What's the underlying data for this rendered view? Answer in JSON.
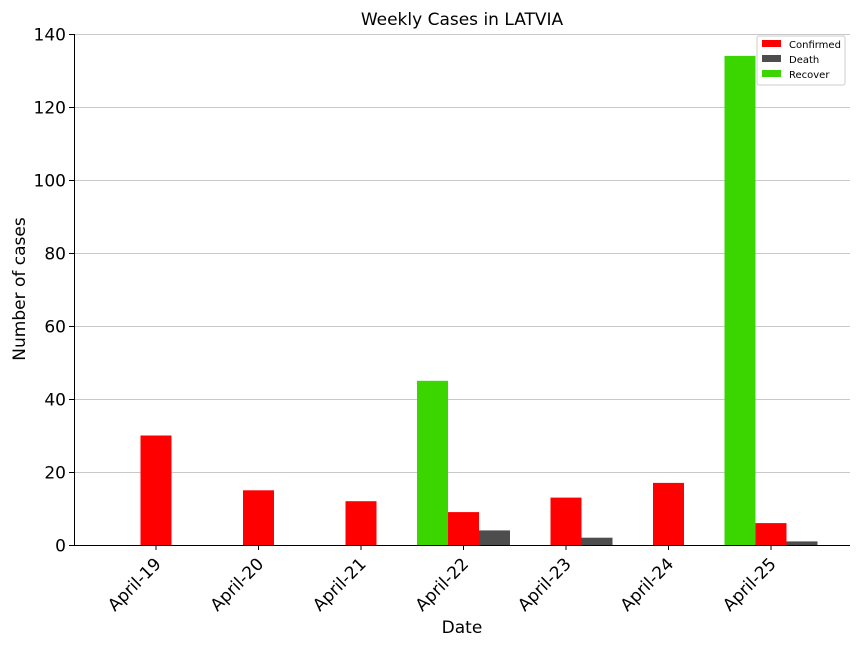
{
  "chart_data": {
    "type": "bar",
    "title": "Weekly Cases in LATVIA",
    "xlabel": "Date",
    "ylabel": "Number of cases",
    "ylim": [
      0,
      140
    ],
    "yticks": [
      0,
      20,
      40,
      60,
      80,
      100,
      120,
      140
    ],
    "categories": [
      "April-19",
      "April-20",
      "April-21",
      "April-22",
      "April-23",
      "April-24",
      "April-25"
    ],
    "series": [
      {
        "name": "Confirmed",
        "color": "#ff0000",
        "values": [
          30,
          15,
          12,
          9,
          13,
          17,
          6
        ]
      },
      {
        "name": "Death",
        "color": "#4d4d4d",
        "values": [
          0,
          0,
          0,
          4,
          2,
          0,
          1
        ]
      },
      {
        "name": "Recover",
        "color": "#3bd600",
        "values": [
          0,
          0,
          0,
          45,
          0,
          0,
          134
        ]
      }
    ],
    "grid": "horizontal",
    "legend": "top-right"
  }
}
